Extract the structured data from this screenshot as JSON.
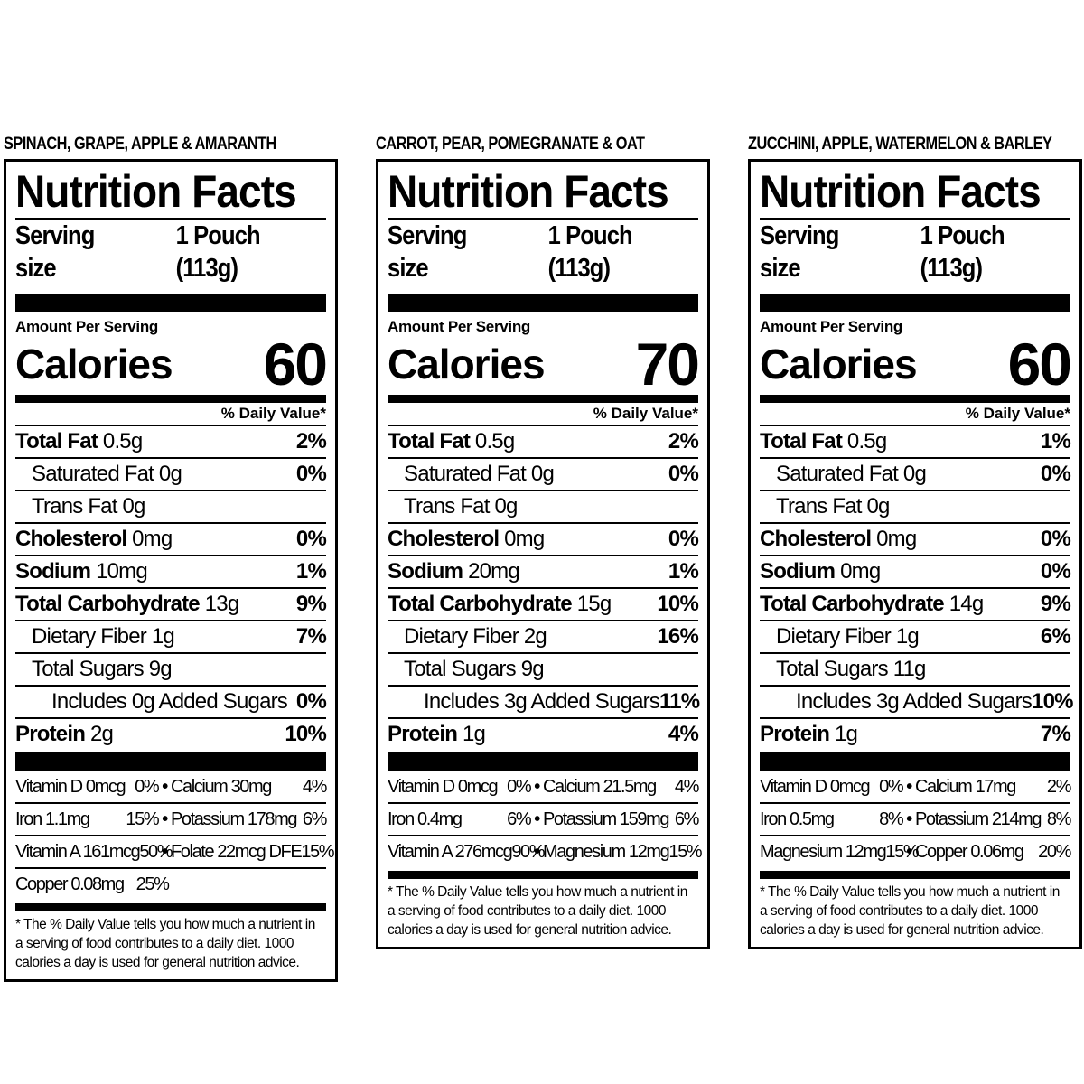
{
  "products": [
    {
      "name": "SPINACH, GRAPE, APPLE & AMARANTH",
      "title": "Nutrition Facts",
      "serving_label": "Serving size",
      "serving_value": "1 Pouch (113g)",
      "amount_label": "Amount Per Serving",
      "calories_label": "Calories",
      "calories": "60",
      "dv_header": "% Daily Value*",
      "nutrients": [
        {
          "name": "Total Fat",
          "amount": "0.5g",
          "dv": "2%",
          "bold": true,
          "indent": 0
        },
        {
          "name": "Saturated Fat",
          "amount": "0g",
          "dv": "0%",
          "bold": false,
          "indent": 1
        },
        {
          "name": "Trans Fat",
          "amount": "0g",
          "dv": "",
          "bold": false,
          "indent": 1
        },
        {
          "name": "Cholesterol",
          "amount": "0mg",
          "dv": "0%",
          "bold": true,
          "indent": 0
        },
        {
          "name": "Sodium",
          "amount": "10mg",
          "dv": "1%",
          "bold": true,
          "indent": 0
        },
        {
          "name": "Total Carbohydrate",
          "amount": "13g",
          "dv": "9%",
          "bold": true,
          "indent": 0
        },
        {
          "name": "Dietary Fiber",
          "amount": "1g",
          "dv": "7%",
          "bold": false,
          "indent": 1
        },
        {
          "name": "Total Sugars",
          "amount": "9g",
          "dv": "",
          "bold": false,
          "indent": 1
        },
        {
          "name": "Includes 0g Added Sugars",
          "amount": "",
          "dv": "0%",
          "bold": false,
          "indent": 2
        },
        {
          "name": "Protein",
          "amount": "2g",
          "dv": "10%",
          "bold": true,
          "indent": 0
        }
      ],
      "vitamins": [
        [
          [
            "Vitamin D 0mcg",
            "0%"
          ],
          [
            "Calcium 30mg",
            "4%"
          ]
        ],
        [
          [
            "Iron 1.1mg",
            "15%"
          ],
          [
            "Potassium 178mg",
            "6%"
          ]
        ],
        [
          [
            "Vitamin A 161mcg",
            "50%"
          ],
          [
            "Folate 22mcg DFE",
            "15%"
          ]
        ],
        [
          [
            "Copper 0.08mg",
            "25%"
          ]
        ]
      ],
      "footnote": "* The % Daily Value tells you how much a nutrient in a serving of food contributes to a daily diet. 1000 calories a day is used for general nutrition advice."
    },
    {
      "name": "CARROT, PEAR, POMEGRANATE & OAT",
      "title": "Nutrition Facts",
      "serving_label": "Serving size",
      "serving_value": "1 Pouch (113g)",
      "amount_label": "Amount Per Serving",
      "calories_label": "Calories",
      "calories": "70",
      "dv_header": "% Daily Value*",
      "nutrients": [
        {
          "name": "Total Fat",
          "amount": "0.5g",
          "dv": "2%",
          "bold": true,
          "indent": 0
        },
        {
          "name": "Saturated Fat",
          "amount": "0g",
          "dv": "0%",
          "bold": false,
          "indent": 1
        },
        {
          "name": "Trans Fat",
          "amount": "0g",
          "dv": "",
          "bold": false,
          "indent": 1
        },
        {
          "name": "Cholesterol",
          "amount": "0mg",
          "dv": "0%",
          "bold": true,
          "indent": 0
        },
        {
          "name": "Sodium",
          "amount": "20mg",
          "dv": "1%",
          "bold": true,
          "indent": 0
        },
        {
          "name": "Total Carbohydrate",
          "amount": "15g",
          "dv": "10%",
          "bold": true,
          "indent": 0
        },
        {
          "name": "Dietary Fiber",
          "amount": "2g",
          "dv": "16%",
          "bold": false,
          "indent": 1
        },
        {
          "name": "Total Sugars",
          "amount": "9g",
          "dv": "",
          "bold": false,
          "indent": 1
        },
        {
          "name": "Includes 3g Added Sugars",
          "amount": "",
          "dv": "11%",
          "bold": false,
          "indent": 2
        },
        {
          "name": "Protein",
          "amount": "1g",
          "dv": "4%",
          "bold": true,
          "indent": 0
        }
      ],
      "vitamins": [
        [
          [
            "Vitamin D 0mcg",
            "0%"
          ],
          [
            "Calcium 21.5mg",
            "4%"
          ]
        ],
        [
          [
            "Iron 0.4mg",
            "6%"
          ],
          [
            "Potassium 159mg",
            "6%"
          ]
        ],
        [
          [
            "Vitamin A 276mcg",
            "90%"
          ],
          [
            "Magnesium 12mg",
            "15%"
          ]
        ]
      ],
      "footnote": "* The % Daily Value tells you how much a nutrient in a serving of food contributes to a daily diet. 1000 calories a day is used for general nutrition advice."
    },
    {
      "name": "ZUCCHINI, APPLE, WATERMELON & BARLEY",
      "title": "Nutrition Facts",
      "serving_label": "Serving size",
      "serving_value": "1 Pouch (113g)",
      "amount_label": "Amount Per Serving",
      "calories_label": "Calories",
      "calories": "60",
      "dv_header": "% Daily Value*",
      "nutrients": [
        {
          "name": "Total Fat",
          "amount": "0.5g",
          "dv": "1%",
          "bold": true,
          "indent": 0
        },
        {
          "name": "Saturated Fat",
          "amount": "0g",
          "dv": "0%",
          "bold": false,
          "indent": 1
        },
        {
          "name": "Trans Fat",
          "amount": "0g",
          "dv": "",
          "bold": false,
          "indent": 1
        },
        {
          "name": "Cholesterol",
          "amount": "0mg",
          "dv": "0%",
          "bold": true,
          "indent": 0
        },
        {
          "name": "Sodium",
          "amount": "0mg",
          "dv": "0%",
          "bold": true,
          "indent": 0
        },
        {
          "name": "Total Carbohydrate",
          "amount": "14g",
          "dv": "9%",
          "bold": true,
          "indent": 0
        },
        {
          "name": "Dietary Fiber",
          "amount": "1g",
          "dv": "6%",
          "bold": false,
          "indent": 1
        },
        {
          "name": "Total Sugars",
          "amount": "11g",
          "dv": "",
          "bold": false,
          "indent": 1
        },
        {
          "name": "Includes 3g Added Sugars",
          "amount": "",
          "dv": "10%",
          "bold": false,
          "indent": 2
        },
        {
          "name": "Protein",
          "amount": "1g",
          "dv": "7%",
          "bold": true,
          "indent": 0
        }
      ],
      "vitamins": [
        [
          [
            "Vitamin D 0mcg",
            "0%"
          ],
          [
            "Calcium 17mg",
            "2%"
          ]
        ],
        [
          [
            "Iron 0.5mg",
            "8%"
          ],
          [
            "Potassium 214mg",
            "8%"
          ]
        ],
        [
          [
            "Magnesium 12mg",
            "15%"
          ],
          [
            "Copper 0.06mg",
            "20%"
          ]
        ]
      ],
      "footnote": "* The % Daily Value tells you how much a nutrient in a serving of food contributes to a daily diet. 1000 calories a day is used for general nutrition advice."
    }
  ]
}
